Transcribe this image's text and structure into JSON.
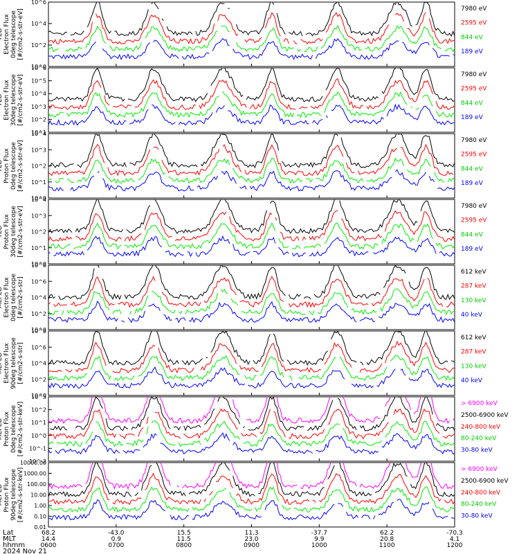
{
  "colors": {
    "blue": "#0000ff",
    "red": "#ff0000",
    "green": "#00ee00",
    "black": "#000000",
    "magenta": "#ff00ff",
    "frame": "#000000"
  },
  "chart_data": [
    {
      "type": "line",
      "panel_label": [
        "TED",
        "Electron Flux",
        "0deg telescope",
        "[#/cm2-s-str-eV]"
      ],
      "ylim": [
        1,
        1000000
      ],
      "yscale": "log",
      "ytick_labels": [
        "10^0",
        "10^2",
        "10^4",
        "10^6"
      ],
      "series": [
        {
          "name": "7980 eV",
          "color": "black"
        },
        {
          "name": "2595 eV",
          "color": "red"
        },
        {
          "name": "844 eV",
          "color": "green"
        },
        {
          "name": "189 eV",
          "color": "blue"
        }
      ]
    },
    {
      "type": "line",
      "panel_label": [
        "TED",
        "Electron Flux",
        "30deg telescope",
        "[#/cm2-s-str-eV]"
      ],
      "ylim": [
        10,
        1000000
      ],
      "yscale": "log",
      "ytick_labels": [
        "10^1",
        "10^2",
        "10^3",
        "10^4",
        "10^5",
        "10^6"
      ],
      "series": [
        {
          "name": "7980 eV",
          "color": "black"
        },
        {
          "name": "2595 eV",
          "color": "red"
        },
        {
          "name": "844 eV",
          "color": "green"
        },
        {
          "name": "189 eV",
          "color": "blue"
        }
      ]
    },
    {
      "type": "line",
      "panel_label": [
        "TED",
        "Proton Flux",
        "0deg telescope",
        "[#/cm2-s-str-eV]"
      ],
      "ylim": [
        1,
        100000
      ],
      "yscale": "log",
      "ytick_labels": [
        "10^0",
        "10^1",
        "10^2",
        "10^3",
        "10^4"
      ],
      "series": [
        {
          "name": "7980 eV",
          "color": "black"
        },
        {
          "name": "2595 eV",
          "color": "red"
        },
        {
          "name": "844 eV",
          "color": "green"
        },
        {
          "name": "189 eV",
          "color": "blue"
        }
      ]
    },
    {
      "type": "line",
      "panel_label": [
        "TED",
        "Proton Flux",
        "30deg telescope",
        "[#/cm2-s-str-eV]"
      ],
      "ylim": [
        1,
        100000
      ],
      "yscale": "log",
      "ytick_labels": [
        "10^0",
        "10^1",
        "10^2",
        "10^3",
        "10^4"
      ],
      "series": [
        {
          "name": "7980 eV",
          "color": "black"
        },
        {
          "name": "2595 eV",
          "color": "red"
        },
        {
          "name": "844 eV",
          "color": "green"
        },
        {
          "name": "189 eV",
          "color": "blue"
        }
      ]
    },
    {
      "type": "line",
      "panel_label": [
        "MEPED",
        "Electron Flux",
        "0deg telescope",
        "[#/cm2-s-str]"
      ],
      "ylim": [
        1,
        100000000
      ],
      "yscale": "log",
      "ytick_labels": [
        "10^0",
        "10^2",
        "10^4",
        "10^6",
        "10^8"
      ],
      "series": [
        {
          "name": "612 keV",
          "color": "black"
        },
        {
          "name": "287 keV",
          "color": "red"
        },
        {
          "name": "130 keV",
          "color": "green"
        },
        {
          "name": "40 keV",
          "color": "blue"
        }
      ]
    },
    {
      "type": "line",
      "panel_label": [
        "MEPED",
        "Electron Flux",
        "90deg telescope",
        "[#/cm2-s-str]"
      ],
      "ylim": [
        1,
        100000000
      ],
      "yscale": "log",
      "ytick_labels": [
        "10^0",
        "10^2",
        "10^4",
        "10^6",
        "10^8"
      ],
      "series": [
        {
          "name": "612 keV",
          "color": "black"
        },
        {
          "name": "287 keV",
          "color": "red"
        },
        {
          "name": "130 keV",
          "color": "green"
        },
        {
          "name": "40 keV",
          "color": "blue"
        }
      ]
    },
    {
      "type": "line",
      "panel_label": [
        "MEPED",
        "Proton Flux",
        "0deg telescope",
        "[#/cm2-s-str-keV]"
      ],
      "ylim": [
        0.01,
        10000
      ],
      "yscale": "log",
      "ytick_labels": [
        "10^-2",
        "10^-1",
        "10^0",
        "10^1",
        "10^2",
        "10^3"
      ],
      "series": [
        {
          "name": "> 6900 keV",
          "color": "magenta"
        },
        {
          "name": "2500-6900 keV",
          "color": "black"
        },
        {
          "name": "240-800 keV",
          "color": "red"
        },
        {
          "name": "80-240 keV",
          "color": "green"
        },
        {
          "name": "30-80 keV",
          "color": "blue"
        }
      ]
    },
    {
      "type": "line",
      "panel_label": [
        "MEPED",
        "Proton Flux",
        "90deg telescope",
        "[#/cm2-s-str-keV]"
      ],
      "ylim": [
        0.01,
        10000
      ],
      "yscale": "log",
      "ytick_labels": [
        "0.01",
        "0.10",
        "1.00",
        "10.00",
        "100.00",
        "1000.00",
        "10000.00"
      ],
      "series": [
        {
          "name": "> 6900 keV",
          "color": "magenta"
        },
        {
          "name": "2500-6900 keV",
          "color": "black"
        },
        {
          "name": "240-800 keV",
          "color": "red"
        },
        {
          "name": "80-240 keV",
          "color": "green"
        },
        {
          "name": "30-80 keV",
          "color": "blue"
        }
      ]
    }
  ],
  "x_axis": {
    "row_labels": [
      "Lat",
      "MLT",
      "hhmm"
    ],
    "ticks": [
      {
        "lat": "68.2",
        "mlt": "14.4",
        "hhmm": "0600"
      },
      {
        "lat": "-43.0",
        "mlt": "0.9",
        "hhmm": "0700"
      },
      {
        "lat": "15.5",
        "mlt": "11.5",
        "hhmm": "0800"
      },
      {
        "lat": "11.3",
        "mlt": "23.0",
        "hhmm": "0900"
      },
      {
        "lat": "-37.7",
        "mlt": "9.9",
        "hhmm": "1000"
      },
      {
        "lat": "62.2",
        "mlt": "20.8",
        "hhmm": "1100"
      },
      {
        "lat": "-70.3",
        "mlt": "4.1",
        "hhmm": "1200"
      }
    ],
    "date": "2024 Nov 21"
  }
}
